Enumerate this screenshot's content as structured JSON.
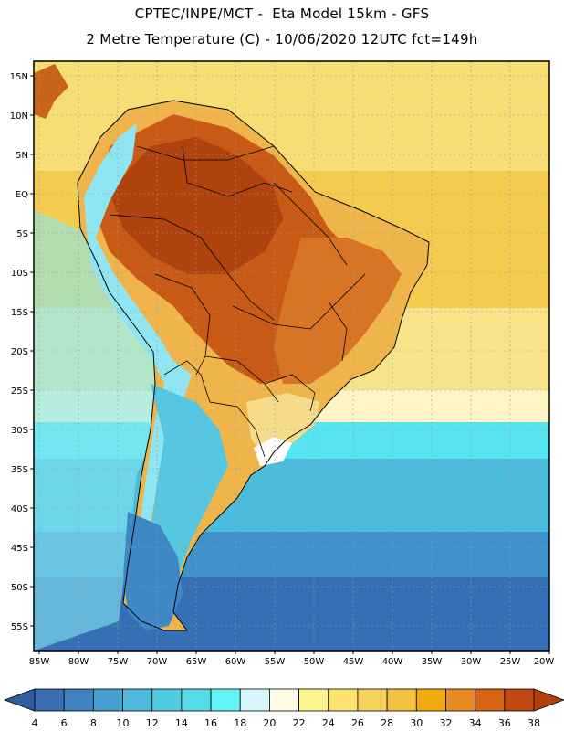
{
  "header": {
    "line1": "CPTEC/INPE/MCT -  Eta Model 15km - GFS",
    "line2": "2 Metre Temperature (C) - 10/06/2020 12UTC fct=149h"
  },
  "axes": {
    "lat_labels": [
      "15N",
      "10N",
      "5N",
      "EQ",
      "5S",
      "10S",
      "15S",
      "20S",
      "25S",
      "30S",
      "35S",
      "40S",
      "45S",
      "50S",
      "55S"
    ],
    "lon_labels": [
      "85W",
      "80W",
      "75W",
      "70W",
      "65W",
      "60W",
      "55W",
      "50W",
      "45W",
      "40W",
      "35W",
      "30W",
      "25W",
      "20W"
    ]
  },
  "colorbar": {
    "values": [
      "4",
      "6",
      "8",
      "10",
      "12",
      "14",
      "16",
      "18",
      "20",
      "22",
      "24",
      "26",
      "28",
      "30",
      "32",
      "34",
      "36",
      "38"
    ],
    "colors": [
      "#3a6fb4",
      "#3f81c1",
      "#45a0cf",
      "#4cb9dd",
      "#4fcbe2",
      "#55dbe9",
      "#61f5f7",
      "#d6f6fb",
      "#fffbe7",
      "#fdf38f",
      "#fbe36e",
      "#f7d25a",
      "#f3c23e",
      "#f3aa10",
      "#e88a20",
      "#da6410",
      "#c34710"
    ],
    "low_color": "#2e5da2",
    "high_color": "#b0400d"
  },
  "field": {
    "ocean_north": "#f6dd74",
    "ocean_south": "#4fc9e0"
  }
}
